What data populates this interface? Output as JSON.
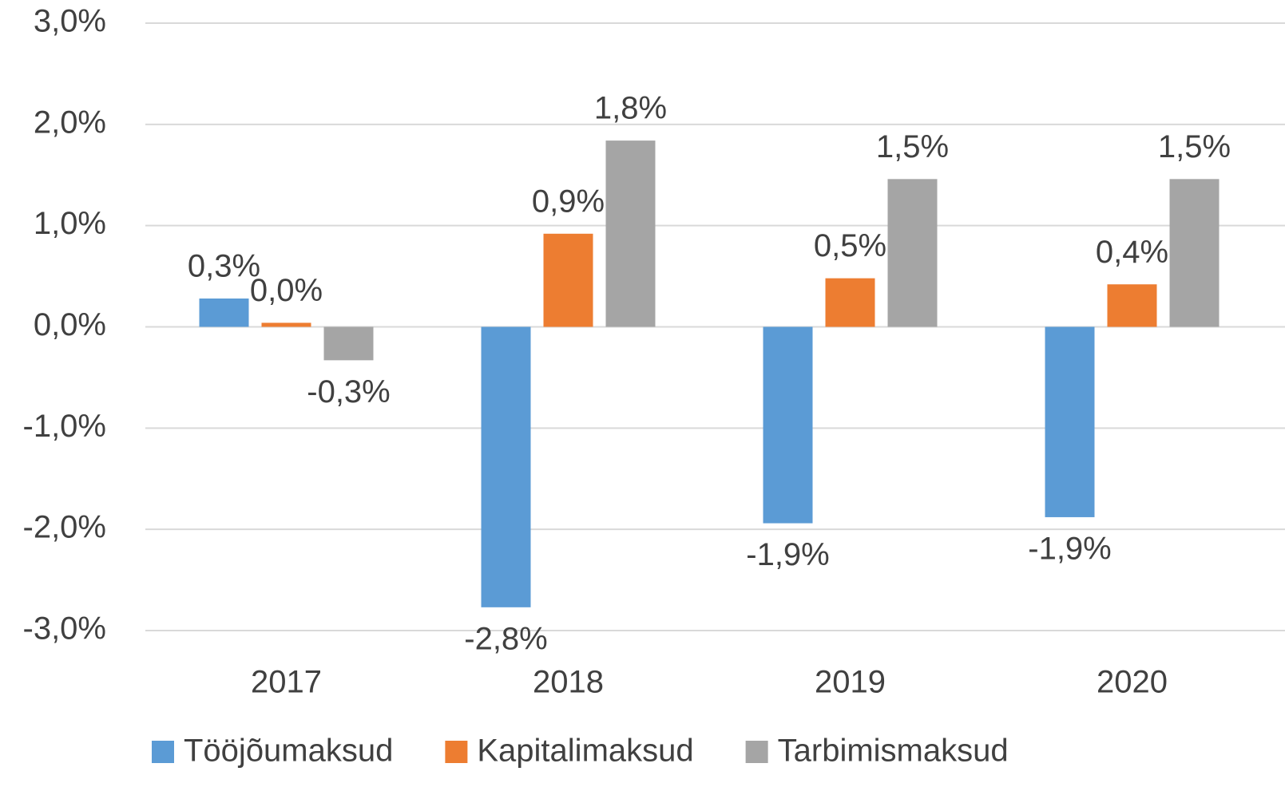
{
  "chart_data": {
    "type": "bar",
    "categories": [
      "2017",
      "2018",
      "2019",
      "2020"
    ],
    "series": [
      {
        "name": "Tööjõumaksud",
        "color": "#5b9bd5",
        "values": [
          0.28,
          -2.77,
          -1.94,
          -1.88
        ],
        "value_labels": [
          "0,3%",
          "-2,8%",
          "-1,9%",
          "-1,9%"
        ]
      },
      {
        "name": "Kapitalimaksud",
        "color": "#ed7d31",
        "values": [
          0.04,
          0.92,
          0.48,
          0.42
        ],
        "value_labels": [
          "0,0%",
          "0,9%",
          "0,5%",
          "0,4%"
        ]
      },
      {
        "name": "Tarbimismaksud",
        "color": "#a5a5a5",
        "values": [
          -0.33,
          1.84,
          1.46,
          1.46
        ],
        "value_labels": [
          "-0,3%",
          "1,8%",
          "1,5%",
          "1,5%"
        ]
      }
    ],
    "ylim": [
      -3,
      3
    ],
    "yticks": [
      {
        "value": -3,
        "label": "-3,0%"
      },
      {
        "value": -2,
        "label": "-2,0%"
      },
      {
        "value": -1,
        "label": "-1,0%"
      },
      {
        "value": 0,
        "label": "0,0%"
      },
      {
        "value": 1,
        "label": "1,0%"
      },
      {
        "value": 2,
        "label": "2,0%"
      },
      {
        "value": 3,
        "label": "3,0%"
      }
    ],
    "grid": true,
    "legend": "bottom"
  }
}
